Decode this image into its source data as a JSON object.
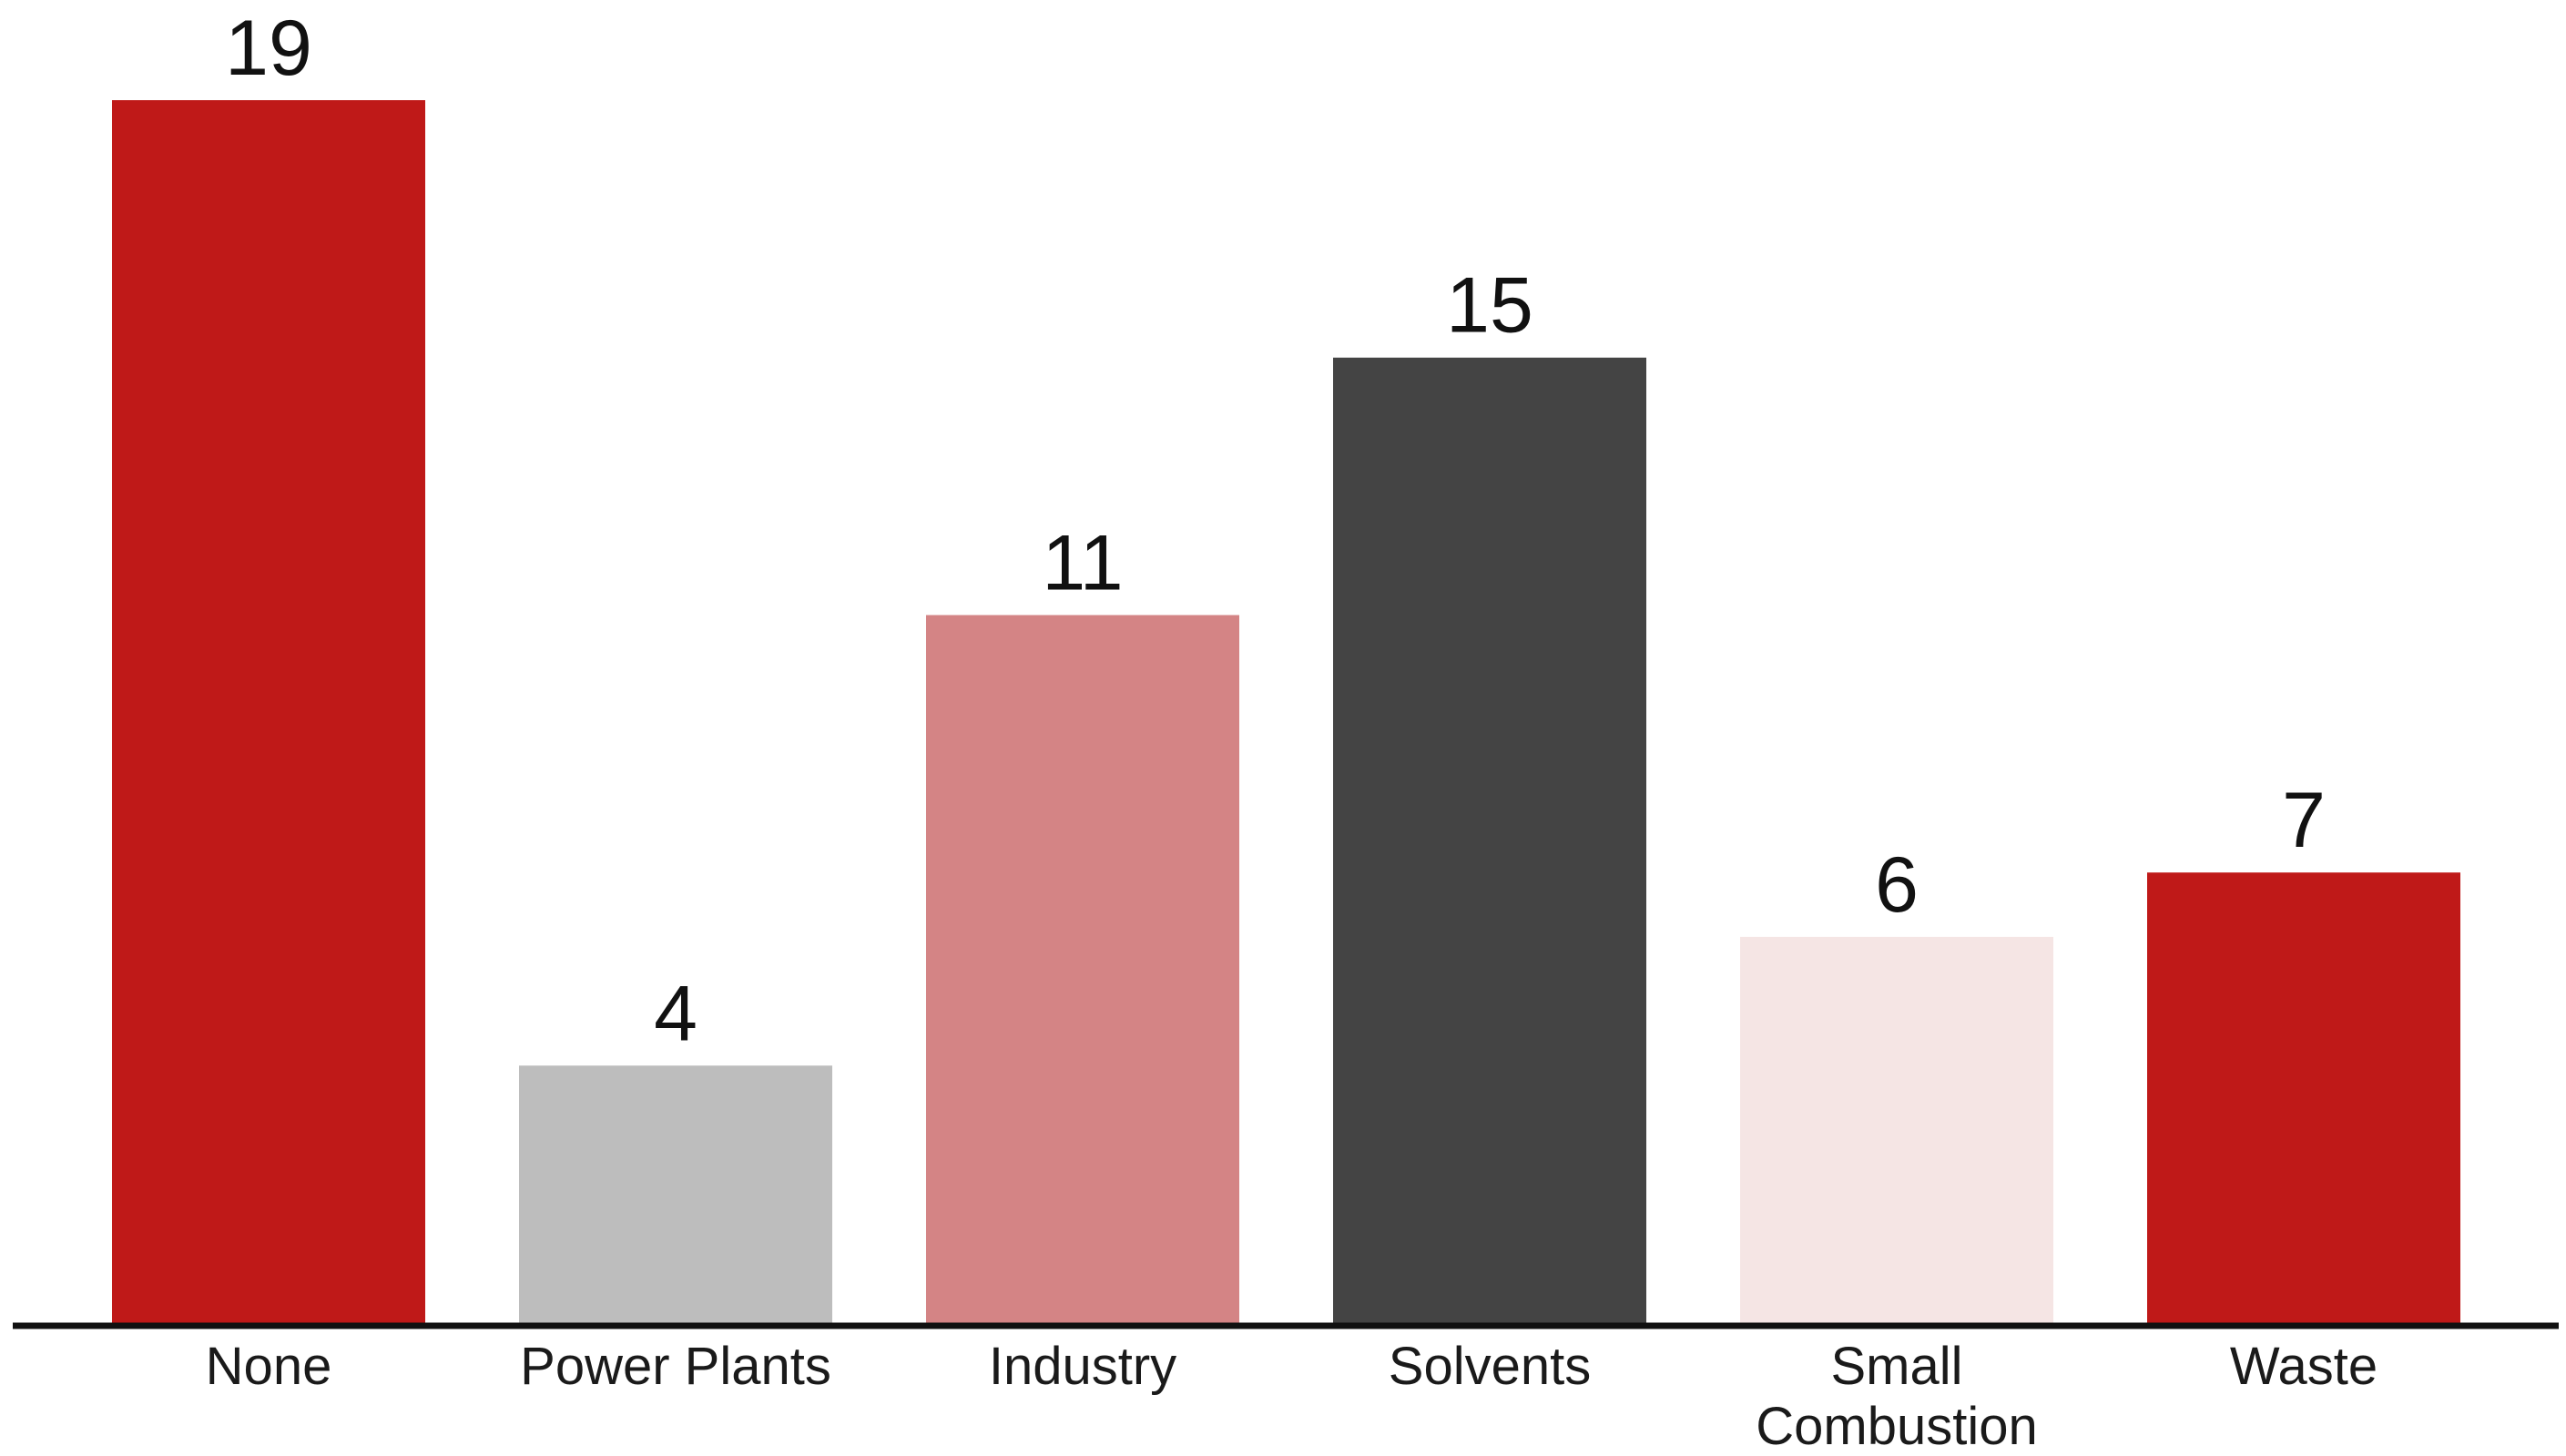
{
  "chart_data": {
    "type": "bar",
    "title": "",
    "xlabel": "",
    "ylabel": "",
    "ylim": [
      0,
      19
    ],
    "grid": false,
    "legend": "none",
    "categories": [
      "None",
      "Power Plants",
      "Industry",
      "Solvents",
      "Small Combustion",
      "Waste"
    ],
    "category_lines": [
      [
        "None"
      ],
      [
        "Power Plants"
      ],
      [
        "Industry"
      ],
      [
        "Solvents"
      ],
      [
        "Small",
        "Combustion"
      ],
      [
        "Waste"
      ]
    ],
    "values": [
      19,
      4,
      11,
      15,
      6,
      7
    ],
    "value_labels": [
      "19",
      "4",
      "11",
      "15",
      "6",
      "7"
    ],
    "colors": [
      "#bf1918",
      "#bdbdbd",
      "#d48485",
      "#444444",
      "#f5e5e4",
      "#bf1918"
    ],
    "axis_color": "#111111"
  }
}
